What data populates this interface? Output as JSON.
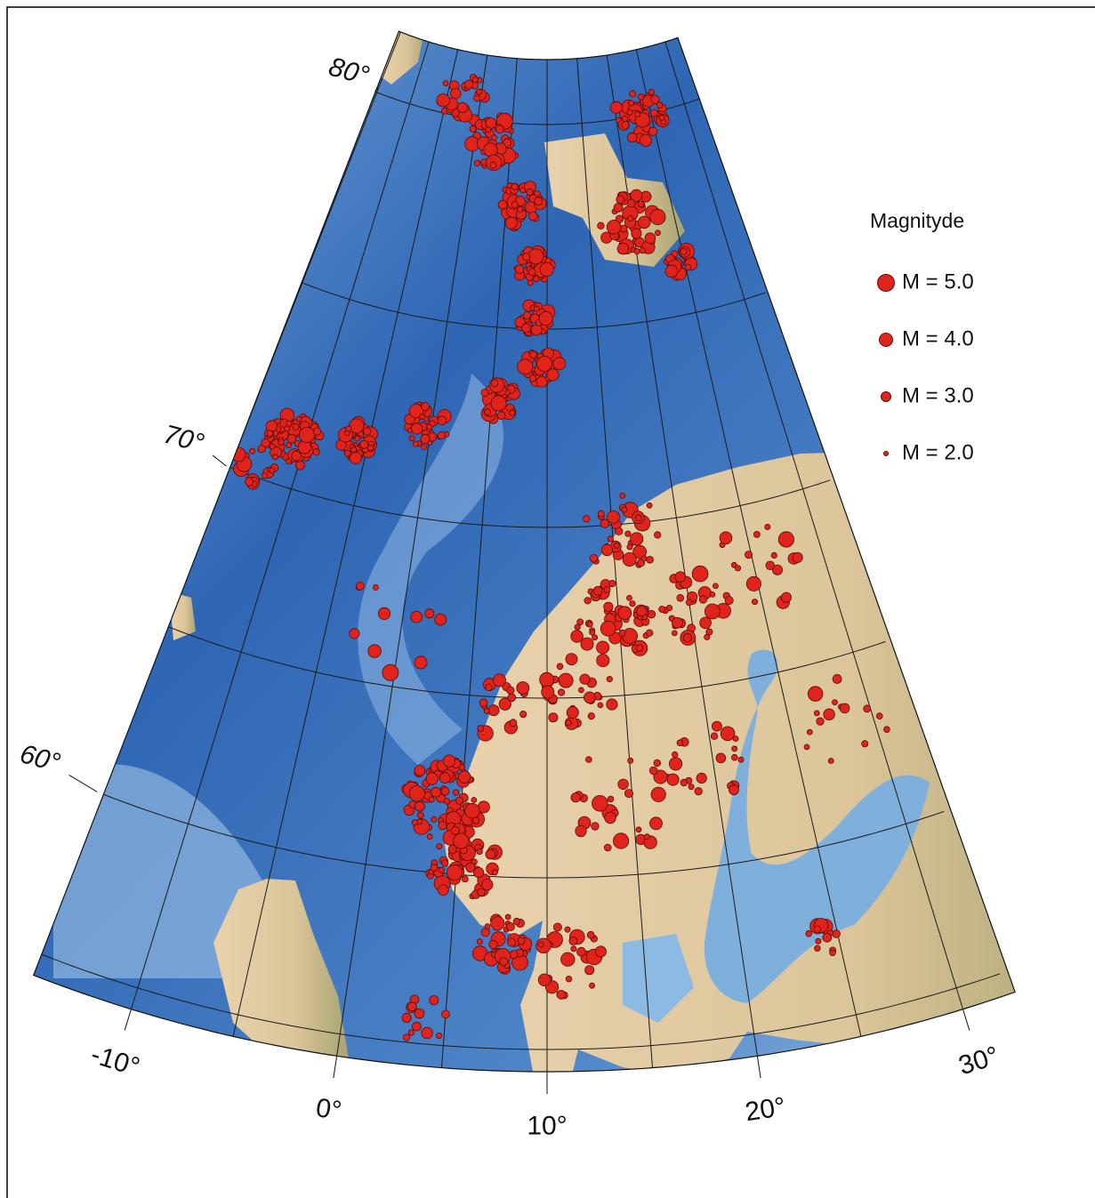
{
  "map": {
    "parallel_labels": [
      {
        "value": 80,
        "label": "80°"
      },
      {
        "value": 70,
        "label": "70°"
      },
      {
        "value": 60,
        "label": "60°"
      }
    ],
    "meridian_labels": [
      {
        "value": -10,
        "label": "-10°"
      },
      {
        "value": 0,
        "label": "0°"
      },
      {
        "value": 10,
        "label": "10°"
      },
      {
        "value": 20,
        "label": "20°"
      },
      {
        "value": 30,
        "label": "30°"
      }
    ],
    "legend": {
      "title": "Magnityde",
      "entries": [
        "M = 5.0",
        "M = 4.0",
        "M = 3.0",
        "M = 2.0"
      ]
    }
  }
}
